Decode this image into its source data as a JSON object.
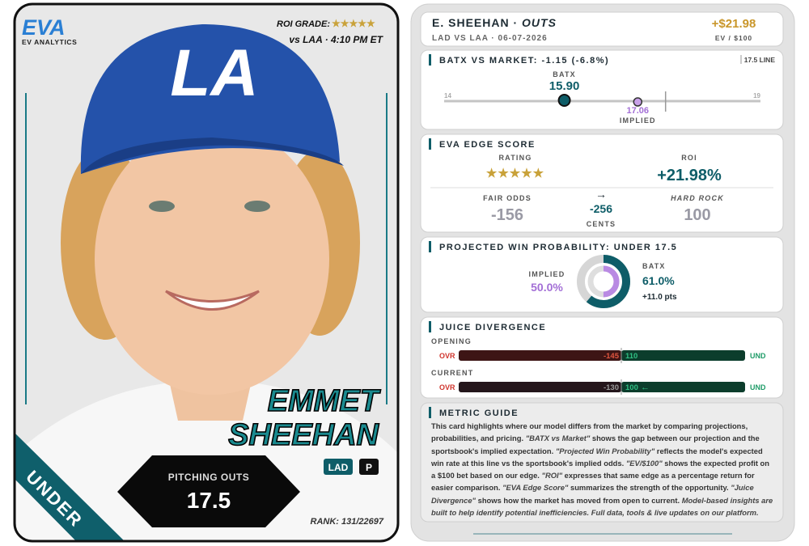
{
  "player_card": {
    "logo": {
      "mark": "EVA",
      "name": "EV ANALYTICS"
    },
    "roi_grade": {
      "label": "ROI GRADE:",
      "stars": "★★★★★"
    },
    "matchup": "vs LAA · 4:10 PM ET",
    "cap_logo": "LA",
    "first_name": "EMMET",
    "last_name": "SHEEHAN",
    "team": "LAD",
    "position": "P",
    "prop": {
      "label": "PITCHING OUTS",
      "line": "17.5"
    },
    "rank": "RANK: 131/22697",
    "banner": "UNDER"
  },
  "header": {
    "title": "E. SHEEHAN ·",
    "market": "OUTS",
    "subtitle": "LAD VS LAA · 06-07-2026",
    "ev": "+$21.98",
    "ev_label": "EV / $100"
  },
  "batx_market": {
    "title": "BATX VS MARKET: -1.15 (-6.8%)",
    "line_label": "17.5 LINE",
    "min": "14",
    "max": "19",
    "batx_label": "BATX",
    "batx": "15.90",
    "implied": "17.06",
    "implied_label": "IMPLIED"
  },
  "edge_score": {
    "title": "EVA EDGE SCORE",
    "rating_label": "RATING",
    "stars": "★★★★★",
    "roi_label": "ROI",
    "roi": "+21.98%",
    "fair_odds_label": "FAIR ODDS",
    "fair_odds": "-156",
    "arrow": "→",
    "diff": "-256",
    "diff_label": "CENTS",
    "book_label": "HARD ROCK",
    "book_odds": "100"
  },
  "win_probability": {
    "title": "PROJECTED WIN PROBABILITY: UNDER 17.5",
    "implied_label": "IMPLIED",
    "implied": "50.0%",
    "batx_label": "BATX",
    "batx": "61.0%",
    "delta": "+11.0 pts"
  },
  "juice": {
    "title": "JUICE DIVERGENCE",
    "rows": [
      {
        "label": "OPENING",
        "over": "OVR",
        "over_odds": "-145",
        "under_odds": "110",
        "under": "UND"
      },
      {
        "label": "CURRENT",
        "over": "OVR",
        "over_odds": "-130",
        "under_odds": "100",
        "trend": "←",
        "under": "UND"
      }
    ]
  },
  "guide": {
    "title": "METRIC GUIDE",
    "segments": [
      "This card highlights where our model differs from the market by comparing projections, probabilities, and pricing. ",
      "\"BATX vs Market\"",
      " shows the gap between our projection and the sportsbook's implied expectation. ",
      "\"Projected Win Probability\"",
      " reflects the model's expected win rate at this line vs the sportsbook's implied odds. ",
      "\"EV/$100\"",
      " shows the expected profit on a $100 bet based on our edge. ",
      "\"ROI\"",
      " expresses that same edge as a percentage return for easier comparison. ",
      "\"EVA Edge Score\"",
      " summarizes the strength of the opportunity. ",
      "\"Juice Divergence\"",
      " shows how the market has moved from open to current. ",
      "Model-based insights are built to help identify potential inefficiencies. Full data, tools & live updates on our platform."
    ]
  }
}
